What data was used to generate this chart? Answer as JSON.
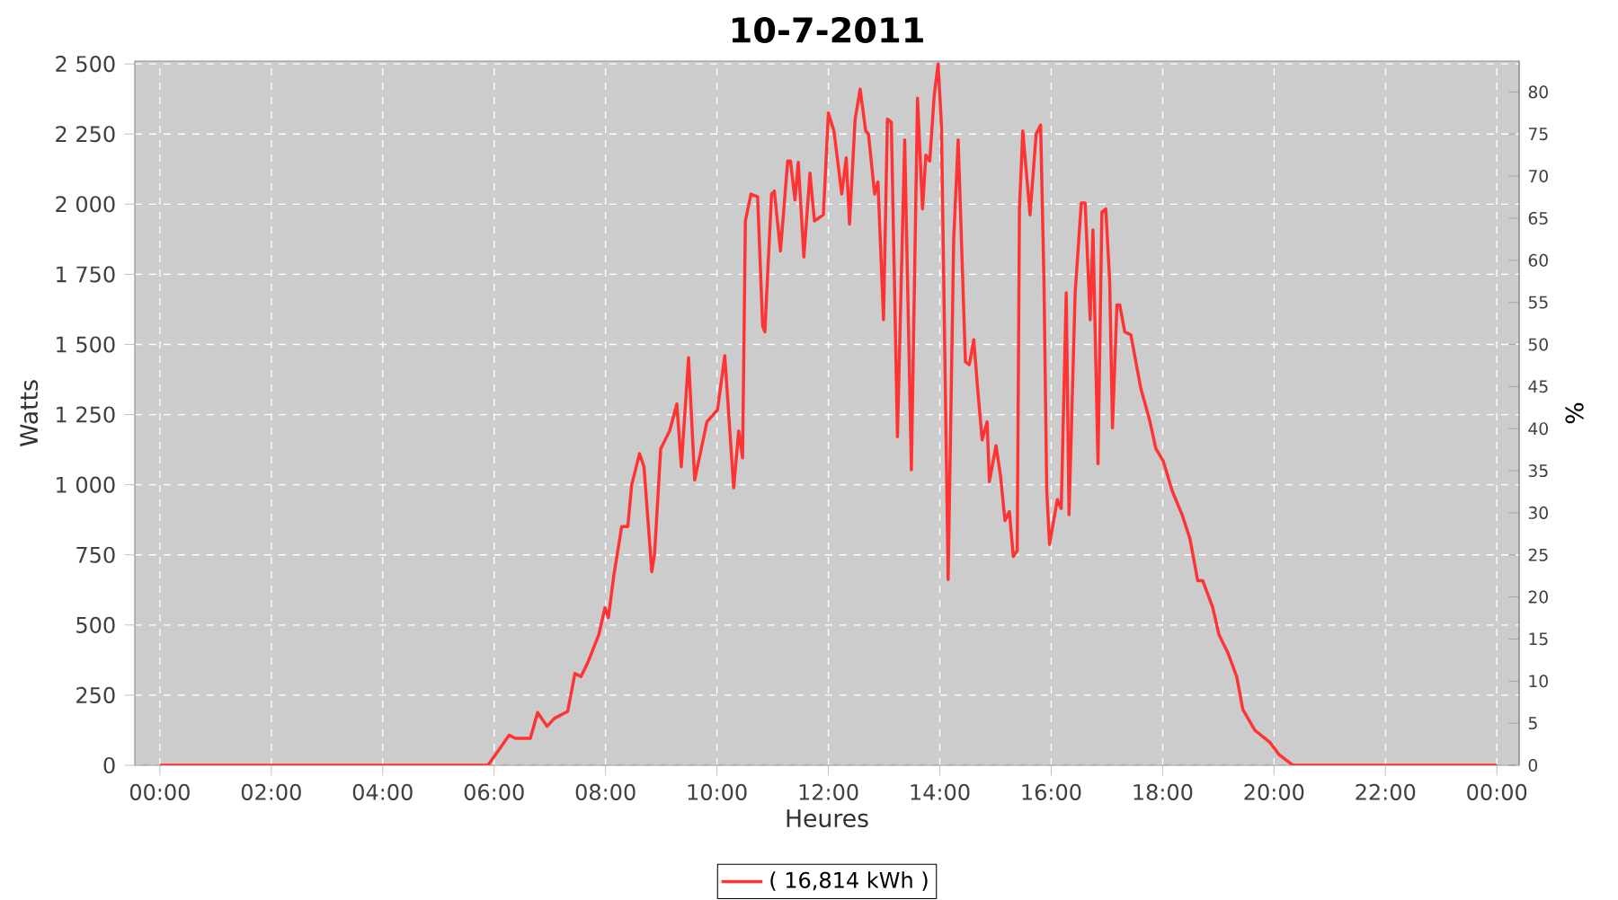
{
  "chart_data": {
    "type": "line",
    "title": "10-7-2011",
    "xlabel": "Heures",
    "ylabel": "Watts",
    "y2label": "%",
    "xlim": [
      -0.45,
      24.4
    ],
    "ylim": [
      0,
      2510
    ],
    "y2lim": [
      0,
      83.67
    ],
    "xticks": [
      {
        "value": 0,
        "label": "00:00"
      },
      {
        "value": 2,
        "label": "02:00"
      },
      {
        "value": 4,
        "label": "04:00"
      },
      {
        "value": 6,
        "label": "06:00"
      },
      {
        "value": 8,
        "label": "08:00"
      },
      {
        "value": 10,
        "label": "10:00"
      },
      {
        "value": 12,
        "label": "12:00"
      },
      {
        "value": 14,
        "label": "14:00"
      },
      {
        "value": 16,
        "label": "16:00"
      },
      {
        "value": 18,
        "label": "18:00"
      },
      {
        "value": 20,
        "label": "20:00"
      },
      {
        "value": 22,
        "label": "22:00"
      },
      {
        "value": 24,
        "label": "00:00"
      }
    ],
    "yticks": [
      0,
      250,
      500,
      750,
      {
        "value": 1000,
        "label": "1 000"
      },
      {
        "value": 1250,
        "label": "1 250"
      },
      {
        "value": 1500,
        "label": "1 500"
      },
      {
        "value": 1750,
        "label": "1 750"
      },
      {
        "value": 2000,
        "label": "2 000"
      },
      {
        "value": 2250,
        "label": "2 250"
      },
      {
        "value": 2500,
        "label": "2 500"
      }
    ],
    "y2ticks": [
      0,
      5,
      10,
      15,
      20,
      25,
      30,
      35,
      40,
      45,
      50,
      55,
      60,
      65,
      70,
      75,
      80
    ],
    "grid": true,
    "legend": "bottom",
    "marker": "none",
    "line_style": "solid",
    "series": [
      {
        "name": "( 16,814 kWh )",
        "color": "#ff3333",
        "x": [
          0,
          5.89,
          6.27,
          6.38,
          6.65,
          6.78,
          6.95,
          7.08,
          7.32,
          7.45,
          7.56,
          7.69,
          7.88,
          7.99,
          8.05,
          8.15,
          8.29,
          8.4,
          8.47,
          8.61,
          8.69,
          8.83,
          8.88,
          8.99,
          9.15,
          9.28,
          9.36,
          9.49,
          9.6,
          9.82,
          10.01,
          10.14,
          10.3,
          10.39,
          10.46,
          10.51,
          10.61,
          10.73,
          10.82,
          10.86,
          10.98,
          11.03,
          11.14,
          11.27,
          11.32,
          11.4,
          11.46,
          11.56,
          11.67,
          11.75,
          11.91,
          12.0,
          12.1,
          12.24,
          12.32,
          12.38,
          12.48,
          12.57,
          12.67,
          12.72,
          12.83,
          12.89,
          12.99,
          13.06,
          13.13,
          13.24,
          13.37,
          13.49,
          13.6,
          13.69,
          13.75,
          13.82,
          13.9,
          13.97,
          14.03,
          14.15,
          14.25,
          14.33,
          14.46,
          14.53,
          14.61,
          14.68,
          14.76,
          14.85,
          14.89,
          15.01,
          15.09,
          15.17,
          15.25,
          15.32,
          15.39,
          15.43,
          15.49,
          15.62,
          15.73,
          15.81,
          15.87,
          15.92,
          15.97,
          16.11,
          16.18,
          16.27,
          16.32,
          16.43,
          16.54,
          16.61,
          16.7,
          16.75,
          16.84,
          16.91,
          16.98,
          17.05,
          17.1,
          17.18,
          17.23,
          17.32,
          17.43,
          17.61,
          17.76,
          17.88,
          18.01,
          18.17,
          18.35,
          18.49,
          18.63,
          18.72,
          18.9,
          19.01,
          19.17,
          19.33,
          19.44,
          19.66,
          19.93,
          20.09,
          20.3,
          20.35,
          24
        ],
        "values": [
          0,
          0,
          107,
          96,
          96,
          188,
          139,
          167,
          192,
          327,
          316,
          370,
          466,
          562,
          526,
          679,
          851,
          851,
          1000,
          1111,
          1064,
          690,
          754,
          1128,
          1192,
          1288,
          1064,
          1453,
          1017,
          1224,
          1267,
          1460,
          989,
          1192,
          1096,
          1940,
          2036,
          2026,
          1566,
          1545,
          2036,
          2047,
          1833,
          2154,
          2154,
          2015,
          2149,
          1812,
          2111,
          1940,
          1962,
          2325,
          2261,
          2036,
          2165,
          1929,
          2303,
          2410,
          2261,
          2250,
          2036,
          2079,
          1588,
          2303,
          2292,
          1171,
          2229,
          1053,
          2378,
          1983,
          2175,
          2154,
          2389,
          2500,
          2282,
          662,
          1876,
          2229,
          1438,
          1428,
          1517,
          1342,
          1160,
          1224,
          1011,
          1139,
          1032,
          872,
          904,
          744,
          765,
          1983,
          2261,
          1962,
          2250,
          2282,
          1726,
          979,
          787,
          947,
          915,
          1684,
          893,
          1684,
          2004,
          2004,
          1588,
          1908,
          1075,
          1972,
          1983,
          1726,
          1203,
          1641,
          1641,
          1545,
          1534,
          1342,
          1235,
          1128,
          1085,
          979,
          893,
          808,
          658,
          658,
          562,
          466,
          402,
          316,
          199,
          124,
          81,
          38,
          6,
          0,
          0
        ]
      }
    ]
  }
}
